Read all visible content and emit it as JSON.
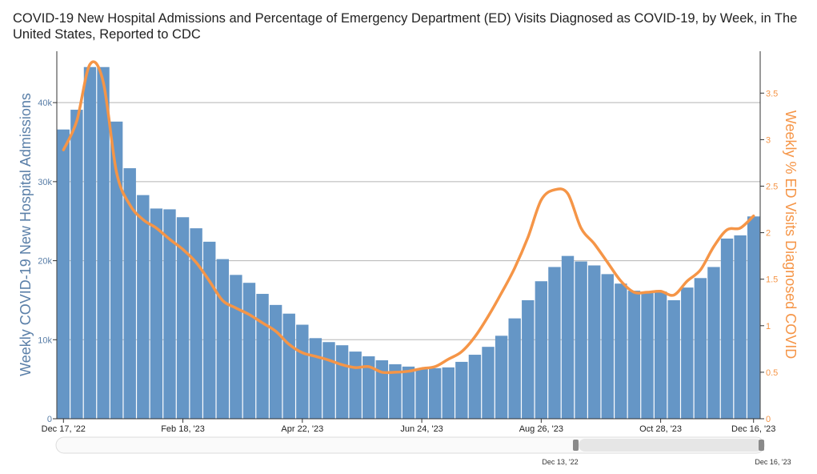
{
  "chart_data": {
    "type": "bar+line",
    "title": "COVID-19 New Hospital Admissions and Percentage of Emergency Department (ED) Visits Diagnosed as COVID-19, by Week, in The United States, Reported to CDC",
    "ylabel_left": "Weekly COVID-19 New Hospital Admissions",
    "ylabel_right": "Weekly % ED Visits Diagnosed COVID",
    "ylim_left": [
      0,
      46500
    ],
    "ylim_right": [
      0,
      3.95
    ],
    "left_ticks": [
      {
        "value": 0,
        "label": "0"
      },
      {
        "value": 10000,
        "label": "10k"
      },
      {
        "value": 20000,
        "label": "20k"
      },
      {
        "value": 30000,
        "label": "30k"
      },
      {
        "value": 40000,
        "label": "40k"
      }
    ],
    "right_ticks": [
      {
        "value": 0,
        "label": "0"
      },
      {
        "value": 0.5,
        "label": "0.5"
      },
      {
        "value": 1,
        "label": "1"
      },
      {
        "value": 1.5,
        "label": "1.5"
      },
      {
        "value": 2,
        "label": "2"
      },
      {
        "value": 2.5,
        "label": "2.5"
      },
      {
        "value": 3,
        "label": "3"
      },
      {
        "value": 3.5,
        "label": "3.5"
      }
    ],
    "x_ticks": [
      {
        "index": 0,
        "label": "Dec 17, '22"
      },
      {
        "index": 9,
        "label": "Feb 18, '23"
      },
      {
        "index": 18,
        "label": "Apr 22, '23"
      },
      {
        "index": 27,
        "label": "Jun 24, '23"
      },
      {
        "index": 36,
        "label": "Aug 26, '23"
      },
      {
        "index": 45,
        "label": "Oct 28, '23"
      },
      {
        "index": 52,
        "label": "Dec 16, '23"
      }
    ],
    "series": [
      {
        "name": "Weekly COVID-19 New Hospital Admissions",
        "type": "bar",
        "color": "#6596c6",
        "values": [
          36600,
          39100,
          44500,
          44500,
          37600,
          31700,
          28300,
          26600,
          26500,
          25500,
          24100,
          22400,
          20200,
          18200,
          17200,
          15800,
          14400,
          13300,
          11900,
          10200,
          9700,
          9300,
          8500,
          7900,
          7400,
          6900,
          6600,
          6300,
          6400,
          6500,
          7200,
          8100,
          9100,
          10500,
          12700,
          15000,
          17400,
          19200,
          20600,
          19900,
          19400,
          18300,
          17100,
          16200,
          16000,
          16100,
          15000,
          16600,
          17800,
          19200,
          22800,
          23200,
          25600
        ]
      },
      {
        "name": "Weekly % ED Visits Diagnosed COVID",
        "type": "line",
        "color": "#f59547",
        "values": [
          2.89,
          3.2,
          3.81,
          3.62,
          2.65,
          2.3,
          2.14,
          2.05,
          1.93,
          1.82,
          1.68,
          1.48,
          1.27,
          1.19,
          1.12,
          1.03,
          0.94,
          0.8,
          0.71,
          0.67,
          0.63,
          0.58,
          0.55,
          0.56,
          0.5,
          0.5,
          0.51,
          0.54,
          0.56,
          0.64,
          0.72,
          0.88,
          1.1,
          1.35,
          1.62,
          1.95,
          2.35,
          2.46,
          2.42,
          2.05,
          1.88,
          1.68,
          1.48,
          1.36,
          1.36,
          1.37,
          1.33,
          1.48,
          1.6,
          1.85,
          2.03,
          2.05,
          2.18
        ]
      }
    ],
    "grid": true,
    "legend": "none"
  },
  "navigator": {
    "start_label": "Dec 13, '22",
    "end_label": "Dec 16, '23"
  }
}
